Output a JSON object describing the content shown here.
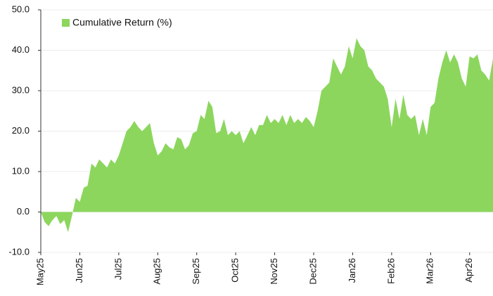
{
  "chart_data": {
    "type": "area",
    "categories": [
      "May25",
      null,
      null,
      null,
      null,
      null,
      null,
      null,
      null,
      null,
      "Jun25",
      null,
      null,
      null,
      null,
      null,
      null,
      null,
      null,
      null,
      "Jul25",
      null,
      null,
      null,
      null,
      null,
      null,
      null,
      null,
      null,
      "Aug25",
      null,
      null,
      null,
      null,
      null,
      null,
      null,
      null,
      null,
      "Sep25",
      null,
      null,
      null,
      null,
      null,
      null,
      null,
      null,
      null,
      "Oct25",
      null,
      null,
      null,
      null,
      null,
      null,
      null,
      null,
      null,
      "Nov25",
      null,
      null,
      null,
      null,
      null,
      null,
      null,
      null,
      null,
      "Dec25",
      null,
      null,
      null,
      null,
      null,
      null,
      null,
      null,
      null,
      "Jan26",
      null,
      null,
      null,
      null,
      null,
      null,
      null,
      null,
      null,
      "Feb26",
      null,
      null,
      null,
      null,
      null,
      null,
      null,
      null,
      null,
      "Mar26",
      null,
      null,
      null,
      null,
      null,
      null,
      null,
      null,
      null,
      "Apr26",
      null,
      null,
      null,
      null,
      null,
      null
    ],
    "series": [
      {
        "name": "Cumulative Return (%)",
        "color": "#8cd65e",
        "values": [
          0,
          -2.5,
          -3.5,
          -2,
          -1,
          -3,
          -2,
          -5,
          -1,
          3.5,
          2.5,
          6,
          6.5,
          12,
          11,
          13,
          12,
          11,
          13,
          12,
          14,
          17,
          20,
          21,
          22.5,
          21,
          20,
          21,
          22,
          17,
          14,
          15,
          17,
          16,
          15.5,
          18.5,
          18,
          15.5,
          16.5,
          19.5,
          20,
          24,
          23,
          27.5,
          26,
          19.5,
          20,
          23,
          19,
          20,
          19,
          20,
          17,
          19,
          21,
          19,
          21.5,
          21.5,
          24,
          22,
          23,
          22,
          24,
          21.5,
          24,
          22,
          23,
          22,
          23.5,
          22.5,
          21,
          25,
          30,
          31,
          32,
          38,
          36,
          34,
          36,
          41,
          38,
          43,
          41,
          40,
          36,
          35,
          33,
          32,
          31,
          28,
          21,
          28,
          23,
          29,
          24,
          23,
          24,
          19,
          23,
          19,
          26,
          27,
          33,
          37,
          40,
          37,
          39,
          37,
          33,
          31,
          38.5,
          38,
          39,
          35,
          34,
          32.5,
          38
        ]
      }
    ],
    "ylim": [
      -10,
      50
    ],
    "yticks": [
      {
        "value": -10,
        "label": "-10.0"
      },
      {
        "value": 0,
        "label": "0.0"
      },
      {
        "value": 10,
        "label": "10.0"
      },
      {
        "value": 20,
        "label": "20.0"
      },
      {
        "value": 30,
        "label": "30.0"
      },
      {
        "value": 40,
        "label": "40.0"
      },
      {
        "value": 50,
        "label": "50.0"
      }
    ],
    "grid": true,
    "legend": "upper left"
  }
}
